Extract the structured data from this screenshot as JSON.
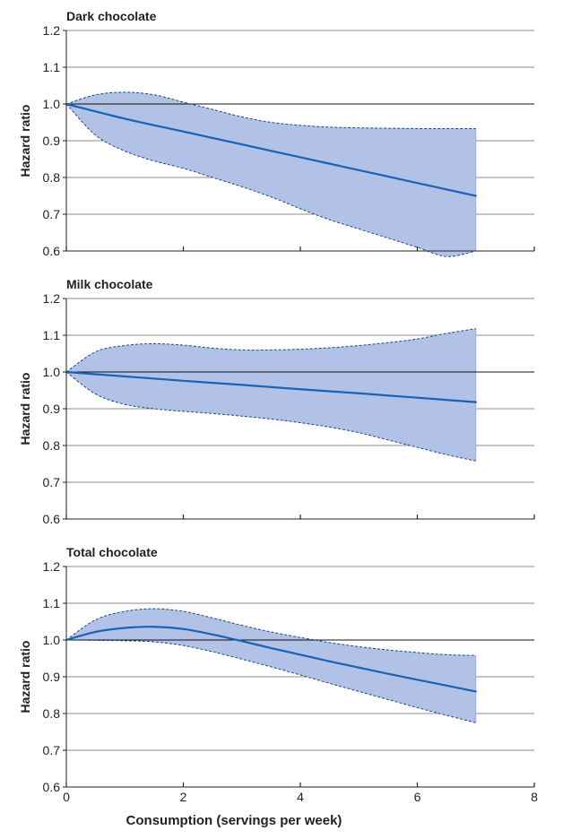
{
  "chart_data": [
    {
      "type": "line",
      "title": "Dark chocolate",
      "ylabel": "Hazard ratio",
      "xlabel": "",
      "xlim": [
        0,
        8
      ],
      "ylim": [
        0.6,
        1.2
      ],
      "xticks": [
        0,
        2,
        4,
        6,
        8
      ],
      "xtick_labels": [],
      "yticks": [
        0.6,
        0.7,
        0.8,
        0.9,
        1.0,
        1.1,
        1.2
      ],
      "ytick_labels": [
        "0.6",
        "0.7",
        "0.8",
        "0.9",
        "1.0",
        "1.1",
        "1.2"
      ],
      "reference_line": 1.0,
      "grid": "horizontal",
      "series": [
        {
          "role": "estimate",
          "style": "solid",
          "x": [
            0,
            1,
            2,
            3,
            4,
            5,
            6,
            7
          ],
          "values": [
            1.0,
            0.96,
            0.925,
            0.89,
            0.855,
            0.82,
            0.785,
            0.75
          ]
        },
        {
          "role": "ci-upper",
          "style": "dashed",
          "x": [
            0,
            0.5,
            1,
            1.5,
            2,
            2.5,
            3,
            3.5,
            4,
            4.5,
            5,
            5.5,
            6,
            6.5,
            7
          ],
          "values": [
            1.0,
            1.025,
            1.032,
            1.025,
            1.005,
            0.985,
            0.965,
            0.95,
            0.942,
            0.937,
            0.935,
            0.934,
            0.933,
            0.933,
            0.933
          ]
        },
        {
          "role": "ci-lower",
          "style": "dashed",
          "x": [
            0,
            0.5,
            1,
            1.5,
            2,
            2.5,
            3,
            3.5,
            4,
            4.5,
            5,
            5.5,
            6,
            6.5,
            7
          ],
          "values": [
            1.0,
            0.915,
            0.872,
            0.845,
            0.825,
            0.8,
            0.775,
            0.747,
            0.715,
            0.685,
            0.66,
            0.635,
            0.61,
            0.585,
            0.6
          ]
        }
      ]
    },
    {
      "type": "line",
      "title": "Milk chocolate",
      "ylabel": "Hazard ratio",
      "xlabel": "",
      "xlim": [
        0,
        8
      ],
      "ylim": [
        0.6,
        1.2
      ],
      "xticks": [
        0,
        2,
        4,
        6,
        8
      ],
      "xtick_labels": [],
      "yticks": [
        0.6,
        0.7,
        0.8,
        0.9,
        1.0,
        1.1,
        1.2
      ],
      "ytick_labels": [
        "0.6",
        "0.7",
        "0.8",
        "0.9",
        "1.0",
        "1.1",
        "1.2"
      ],
      "reference_line": 1.0,
      "grid": "horizontal",
      "series": [
        {
          "role": "estimate",
          "style": "solid",
          "x": [
            0,
            1,
            2,
            3,
            4,
            5,
            6,
            7
          ],
          "values": [
            1.0,
            0.988,
            0.976,
            0.965,
            0.953,
            0.942,
            0.93,
            0.918
          ]
        },
        {
          "role": "ci-upper",
          "style": "dashed",
          "x": [
            0,
            0.5,
            1,
            1.5,
            2,
            2.5,
            3,
            3.5,
            4,
            4.5,
            5,
            5.5,
            6,
            6.5,
            7
          ],
          "values": [
            1.0,
            1.055,
            1.072,
            1.077,
            1.073,
            1.065,
            1.06,
            1.06,
            1.062,
            1.066,
            1.072,
            1.08,
            1.09,
            1.105,
            1.118
          ]
        },
        {
          "role": "ci-lower",
          "style": "dashed",
          "x": [
            0,
            0.5,
            1,
            1.5,
            2,
            2.5,
            3,
            3.5,
            4,
            4.5,
            5,
            5.5,
            6,
            6.5,
            7
          ],
          "values": [
            1.0,
            0.94,
            0.912,
            0.9,
            0.893,
            0.887,
            0.88,
            0.872,
            0.862,
            0.85,
            0.835,
            0.815,
            0.795,
            0.775,
            0.758
          ]
        }
      ]
    },
    {
      "type": "line",
      "title": "Total chocolate",
      "ylabel": "Hazard ratio",
      "xlabel": "Consumption (servings per week)",
      "xlim": [
        0,
        8
      ],
      "ylim": [
        0.6,
        1.2
      ],
      "xticks": [
        0,
        2,
        4,
        6,
        8
      ],
      "xtick_labels": [
        "0",
        "2",
        "4",
        "6",
        "8"
      ],
      "yticks": [
        0.6,
        0.7,
        0.8,
        0.9,
        1.0,
        1.1,
        1.2
      ],
      "ytick_labels": [
        "0.6",
        "0.7",
        "0.8",
        "0.9",
        "1.0",
        "1.1",
        "1.2"
      ],
      "reference_line": 1.0,
      "grid": "horizontal",
      "series": [
        {
          "role": "estimate",
          "style": "solid",
          "x": [
            0,
            0.5,
            1,
            1.5,
            2,
            2.5,
            3,
            3.5,
            4,
            4.5,
            5,
            5.5,
            6,
            6.5,
            7
          ],
          "values": [
            1.0,
            1.022,
            1.033,
            1.036,
            1.03,
            1.015,
            0.997,
            0.978,
            0.96,
            0.942,
            0.925,
            0.908,
            0.892,
            0.876,
            0.86
          ]
        },
        {
          "role": "ci-upper",
          "style": "dashed",
          "x": [
            0,
            0.5,
            1,
            1.5,
            2,
            2.5,
            3,
            3.5,
            4,
            4.5,
            5,
            5.5,
            6,
            6.5,
            7
          ],
          "values": [
            1.0,
            1.055,
            1.078,
            1.085,
            1.078,
            1.06,
            1.04,
            1.022,
            1.007,
            0.993,
            0.982,
            0.973,
            0.966,
            0.96,
            0.958
          ]
        },
        {
          "role": "ci-lower",
          "style": "dashed",
          "x": [
            0,
            0.5,
            1,
            1.5,
            2,
            2.5,
            3,
            3.5,
            4,
            4.5,
            5,
            5.5,
            6,
            6.5,
            7
          ],
          "values": [
            1.0,
            0.999,
            0.998,
            0.995,
            0.985,
            0.968,
            0.948,
            0.927,
            0.905,
            0.882,
            0.86,
            0.838,
            0.816,
            0.795,
            0.775
          ]
        }
      ]
    }
  ],
  "colors": {
    "line": "#1b62b3",
    "band_fill": "#b2c1e6",
    "band_edge": "#1a4a8a",
    "grid": "#8c8c8c",
    "axis": "#222222",
    "reference": "#111111",
    "text": "#222222"
  }
}
